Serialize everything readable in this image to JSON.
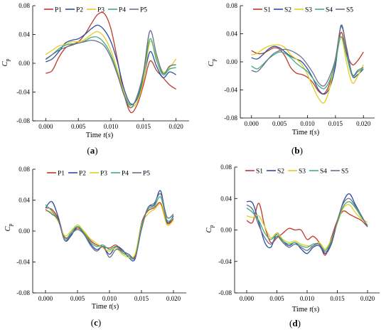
{
  "figure": {
    "background": "#ffffff",
    "series_colors": [
      "#c0392b",
      "#2a4fa0",
      "#e3cd1e",
      "#3fae7e",
      "#6b6f8e"
    ]
  },
  "chart_data": [
    {
      "type": "line",
      "panel_label": "(a)",
      "xlabel": "Time t(s)",
      "ylabel": "Cp",
      "xlim": [
        -0.002,
        0.022
      ],
      "ylim": [
        -0.08,
        0.08
      ],
      "xticks": [
        0.0,
        0.005,
        0.01,
        0.015,
        0.02
      ],
      "xtick_labels": [
        "0.000",
        "0.005",
        "0.010",
        "0.015",
        "0.020"
      ],
      "yticks": [
        -0.08,
        -0.04,
        0.0,
        0.04,
        0.08
      ],
      "ytick_labels": [
        "-0.08",
        "-0.04",
        "0.00",
        "0.04",
        "0.08"
      ],
      "legend_position": "top",
      "x": [
        0.0,
        0.001,
        0.002,
        0.003,
        0.004,
        0.005,
        0.006,
        0.007,
        0.008,
        0.009,
        0.01,
        0.011,
        0.012,
        0.013,
        0.014,
        0.015,
        0.016,
        0.017,
        0.018,
        0.019,
        0.02
      ],
      "series": [
        {
          "name": "P1",
          "color": "#c0392b",
          "values": [
            -0.014,
            -0.01,
            0.008,
            0.021,
            0.026,
            0.03,
            0.04,
            0.055,
            0.068,
            0.069,
            0.048,
            0.005,
            -0.042,
            -0.068,
            -0.058,
            -0.03,
            0.003,
            -0.01,
            -0.02,
            -0.03,
            -0.036
          ]
        },
        {
          "name": "P2",
          "color": "#2a4fa0",
          "values": [
            0.002,
            0.006,
            0.016,
            0.028,
            0.032,
            0.034,
            0.04,
            0.048,
            0.053,
            0.046,
            0.03,
            0.002,
            -0.035,
            -0.056,
            -0.05,
            -0.022,
            0.016,
            -0.004,
            -0.02,
            -0.012,
            -0.016
          ]
        },
        {
          "name": "P3",
          "color": "#e3cd1e",
          "values": [
            0.012,
            0.018,
            0.024,
            0.026,
            0.03,
            0.03,
            0.033,
            0.04,
            0.044,
            0.036,
            0.018,
            -0.01,
            -0.04,
            -0.06,
            -0.054,
            -0.024,
            0.03,
            0.008,
            -0.012,
            -0.006,
            0.006
          ]
        },
        {
          "name": "P4",
          "color": "#3fae7e",
          "values": [
            0.005,
            0.012,
            0.02,
            0.025,
            0.027,
            0.028,
            0.031,
            0.036,
            0.036,
            0.028,
            0.012,
            -0.014,
            -0.043,
            -0.058,
            -0.048,
            -0.016,
            0.034,
            0.004,
            -0.016,
            -0.008,
            -0.006
          ]
        },
        {
          "name": "P5",
          "color": "#6b6f8e",
          "values": [
            0.006,
            0.012,
            0.018,
            0.022,
            0.025,
            0.028,
            0.03,
            0.032,
            0.03,
            0.024,
            0.008,
            -0.016,
            -0.044,
            -0.062,
            -0.046,
            -0.012,
            0.045,
            0.012,
            -0.014,
            -0.004,
            -0.002
          ]
        }
      ]
    },
    {
      "type": "line",
      "panel_label": "(b)",
      "xlabel": "Time t(s)",
      "ylabel": "Cp",
      "xlim": [
        -0.002,
        0.022
      ],
      "ylim": [
        -0.08,
        0.08
      ],
      "xticks": [
        0.0,
        0.005,
        0.01,
        0.015,
        0.02
      ],
      "xtick_labels": [
        "0.000",
        "0.005",
        "0.010",
        "0.015",
        "0.020"
      ],
      "yticks": [
        -0.08,
        -0.04,
        0.0,
        0.04,
        0.08
      ],
      "ytick_labels": [
        "-0.08",
        "-0.04",
        "0.00",
        "0.04",
        "0.08"
      ],
      "legend_position": "top",
      "x": [
        0.0,
        0.001,
        0.002,
        0.003,
        0.004,
        0.005,
        0.006,
        0.007,
        0.008,
        0.009,
        0.01,
        0.011,
        0.012,
        0.013,
        0.014,
        0.015,
        0.016,
        0.017,
        0.018,
        0.019,
        0.02
      ],
      "series": [
        {
          "name": "S1",
          "color": "#c0392b",
          "values": [
            0.016,
            0.012,
            0.012,
            0.016,
            0.02,
            0.018,
            0.008,
            -0.008,
            -0.016,
            -0.018,
            -0.022,
            -0.03,
            -0.042,
            -0.045,
            -0.03,
            0.0,
            0.042,
            0.012,
            -0.004,
            0.002,
            0.014
          ]
        },
        {
          "name": "S2",
          "color": "#2a4fa0",
          "values": [
            0.006,
            0.004,
            0.01,
            0.018,
            0.022,
            0.02,
            0.014,
            0.008,
            0.004,
            0.0,
            -0.01,
            -0.024,
            -0.04,
            -0.046,
            -0.036,
            -0.006,
            0.052,
            0.018,
            -0.02,
            -0.018,
            -0.01
          ]
        },
        {
          "name": "S3",
          "color": "#e3cd1e",
          "values": [
            0.01,
            0.012,
            0.018,
            0.022,
            0.024,
            0.024,
            0.02,
            0.01,
            0.004,
            -0.004,
            -0.018,
            -0.036,
            -0.052,
            -0.058,
            -0.036,
            0.006,
            0.036,
            -0.002,
            -0.03,
            -0.02,
            -0.004
          ]
        },
        {
          "name": "S4",
          "color": "#3fae7e",
          "values": [
            -0.006,
            -0.01,
            -0.004,
            0.004,
            0.01,
            0.014,
            0.012,
            0.006,
            -0.002,
            -0.008,
            -0.014,
            -0.024,
            -0.034,
            -0.038,
            -0.026,
            0.0,
            0.036,
            0.008,
            -0.02,
            -0.014,
            -0.01
          ]
        },
        {
          "name": "S5",
          "color": "#6b6f8e",
          "values": [
            -0.012,
            -0.014,
            -0.006,
            0.004,
            0.012,
            0.016,
            0.018,
            0.016,
            0.012,
            0.006,
            -0.004,
            -0.016,
            -0.03,
            -0.034,
            -0.02,
            0.004,
            0.05,
            0.02,
            -0.018,
            -0.012,
            -0.008
          ]
        }
      ]
    },
    {
      "type": "line",
      "panel_label": "(c)",
      "xlabel": "Time t(s)",
      "ylabel": "Cp",
      "xlim": [
        -0.002,
        0.022
      ],
      "ylim": [
        -0.08,
        0.08
      ],
      "xticks": [
        0.0,
        0.005,
        0.01,
        0.015,
        0.02
      ],
      "xtick_labels": [
        "0.000",
        "0.005",
        "0.010",
        "0.015",
        "0.020"
      ],
      "yticks": [
        -0.08,
        -0.04,
        0.0,
        0.04,
        0.08
      ],
      "ytick_labels": [
        "-0.08",
        "-0.04",
        "0.00",
        "0.04",
        "0.08"
      ],
      "legend_position": "top",
      "x": [
        0.0,
        0.001,
        0.002,
        0.003,
        0.004,
        0.005,
        0.006,
        0.007,
        0.008,
        0.009,
        0.01,
        0.011,
        0.012,
        0.013,
        0.014,
        0.015,
        0.016,
        0.017,
        0.018,
        0.019,
        0.02
      ],
      "series": [
        {
          "name": "P1",
          "color": "#c0392b",
          "values": [
            0.03,
            0.028,
            0.016,
            -0.008,
            -0.004,
            0.004,
            -0.002,
            -0.012,
            -0.018,
            -0.02,
            -0.022,
            -0.018,
            -0.026,
            -0.03,
            -0.032,
            0.01,
            0.026,
            0.03,
            0.036,
            0.01,
            0.016
          ]
        },
        {
          "name": "P2",
          "color": "#2a4fa0",
          "values": [
            0.03,
            0.038,
            0.018,
            -0.012,
            -0.006,
            0.006,
            -0.004,
            -0.016,
            -0.024,
            -0.02,
            -0.03,
            -0.02,
            -0.024,
            -0.034,
            -0.036,
            0.004,
            0.03,
            0.034,
            0.052,
            0.012,
            0.02
          ]
        },
        {
          "name": "P3",
          "color": "#e3cd1e",
          "values": [
            0.026,
            0.024,
            0.012,
            -0.006,
            0.0,
            0.008,
            0.0,
            -0.01,
            -0.016,
            -0.022,
            -0.026,
            -0.022,
            -0.03,
            -0.034,
            -0.03,
            0.008,
            0.022,
            0.028,
            0.034,
            0.008,
            0.014
          ]
        },
        {
          "name": "P4",
          "color": "#3fae7e",
          "values": [
            0.034,
            0.026,
            0.014,
            -0.01,
            -0.002,
            0.006,
            -0.002,
            -0.014,
            -0.02,
            -0.018,
            -0.024,
            -0.02,
            -0.028,
            -0.032,
            -0.034,
            0.006,
            0.028,
            0.032,
            0.044,
            0.014,
            0.018
          ]
        },
        {
          "name": "P5",
          "color": "#6b6f8e",
          "values": [
            0.028,
            0.022,
            0.014,
            -0.012,
            -0.004,
            0.002,
            -0.004,
            -0.018,
            -0.026,
            -0.02,
            -0.034,
            -0.024,
            -0.026,
            -0.03,
            -0.034,
            0.002,
            0.03,
            0.036,
            0.048,
            0.018,
            0.022
          ]
        }
      ]
    },
    {
      "type": "line",
      "panel_label": "(d)",
      "xlabel": "Time t(s)",
      "ylabel": "Cp",
      "xlim": [
        -0.002,
        0.022
      ],
      "ylim": [
        -0.08,
        0.08
      ],
      "xticks": [
        0.0,
        0.005,
        0.01,
        0.015,
        0.02
      ],
      "xtick_labels": [
        "0.000",
        "0.005",
        "0.010",
        "0.015",
        "0.020"
      ],
      "yticks": [
        -0.08,
        -0.04,
        0.0,
        0.04,
        0.08
      ],
      "ytick_labels": [
        "-0.08",
        "-0.04",
        "0.00",
        "0.04",
        "0.08"
      ],
      "legend_position": "top",
      "x": [
        0.0,
        0.001,
        0.002,
        0.003,
        0.004,
        0.005,
        0.006,
        0.007,
        0.008,
        0.009,
        0.01,
        0.011,
        0.012,
        0.013,
        0.014,
        0.015,
        0.016,
        0.017,
        0.018,
        0.019,
        0.02
      ],
      "series": [
        {
          "name": "S1",
          "color": "#c0392b",
          "values": [
            0.012,
            0.01,
            0.034,
            0.004,
            -0.016,
            -0.01,
            -0.004,
            0.002,
            0.0,
            0.0,
            -0.012,
            -0.008,
            -0.016,
            -0.032,
            -0.01,
            0.012,
            0.024,
            0.02,
            0.016,
            0.012,
            0.004
          ]
        },
        {
          "name": "S2",
          "color": "#2a4fa0",
          "values": [
            0.036,
            0.034,
            0.01,
            -0.016,
            -0.022,
            -0.004,
            -0.014,
            -0.02,
            -0.016,
            -0.024,
            -0.03,
            -0.022,
            -0.02,
            -0.03,
            -0.018,
            0.01,
            0.036,
            0.046,
            0.032,
            0.018,
            0.004
          ]
        },
        {
          "name": "S3",
          "color": "#e3cd1e",
          "values": [
            0.018,
            0.016,
            0.018,
            0.004,
            -0.01,
            -0.004,
            -0.012,
            -0.016,
            -0.014,
            -0.018,
            -0.02,
            -0.02,
            -0.016,
            -0.024,
            -0.012,
            0.008,
            0.028,
            0.032,
            0.022,
            0.014,
            0.01
          ]
        },
        {
          "name": "S4",
          "color": "#3fae7e",
          "values": [
            0.028,
            0.022,
            0.012,
            -0.004,
            -0.012,
            -0.006,
            -0.014,
            -0.018,
            -0.016,
            -0.02,
            -0.022,
            -0.018,
            -0.018,
            -0.026,
            -0.014,
            0.01,
            0.03,
            0.036,
            0.028,
            0.016,
            0.006
          ]
        },
        {
          "name": "S5",
          "color": "#6b6f8e",
          "values": [
            0.032,
            0.026,
            0.006,
            -0.01,
            -0.018,
            -0.008,
            -0.016,
            -0.022,
            -0.018,
            -0.022,
            -0.026,
            -0.02,
            -0.018,
            -0.028,
            -0.016,
            0.012,
            0.034,
            0.04,
            0.03,
            0.018,
            0.004
          ]
        }
      ]
    }
  ]
}
